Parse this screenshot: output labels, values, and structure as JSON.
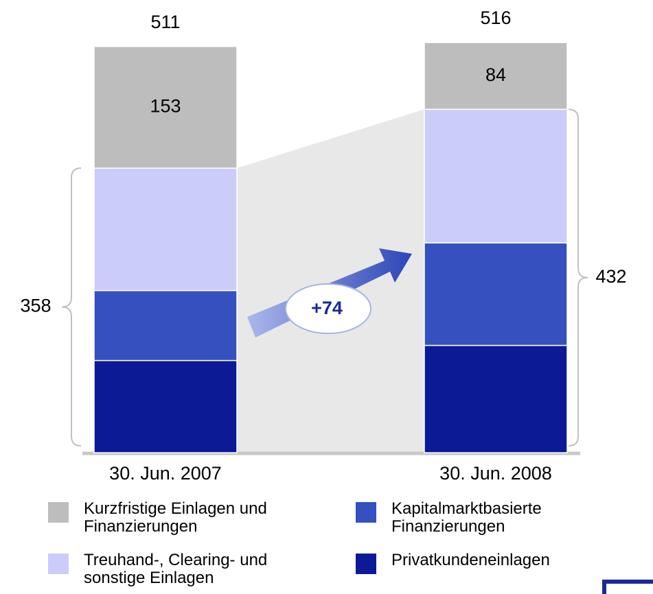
{
  "chart_data": {
    "type": "stacked-bar",
    "categories": [
      "30. Jun. 2007",
      "30. Jun. 2008"
    ],
    "series": [
      {
        "name": "Kurzfristige Einlagen und Finanzierungen",
        "color": "#bdbdbd",
        "values": [
          153,
          84
        ]
      },
      {
        "name": "Treuhand-, Clearing- und sonstige Einlagen",
        "color": "#ccccfa",
        "values": [
          154,
          168
        ]
      },
      {
        "name": "Kapitalmarktbasierte Finanzierungen",
        "color": "#3550bf",
        "values": [
          88,
          129
        ]
      },
      {
        "name": "Privatkundeneinlagen",
        "color": "#0c1a96",
        "values": [
          116,
          135
        ]
      }
    ],
    "totals": [
      511,
      516
    ],
    "subtotals": [
      358,
      432
    ],
    "annotation": "+74"
  }
}
